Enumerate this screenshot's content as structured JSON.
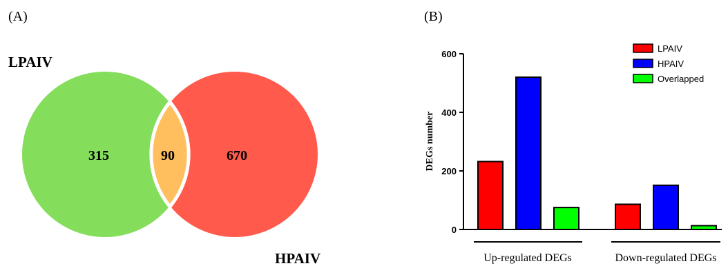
{
  "panel_a": {
    "label": "(A)",
    "set_left_label": "LPAIV",
    "set_right_label": "HPAIV",
    "left_only": "315",
    "overlap": "90",
    "right_only": "670",
    "colors": {
      "left": "#84de5c",
      "right": "#ff5a4c",
      "overlap": "#ffbf5e"
    }
  },
  "panel_b": {
    "label": "(B)"
  },
  "chart_data": [
    {
      "type": "venn",
      "sets": [
        "LPAIV",
        "HPAIV"
      ],
      "values": {
        "LPAIV_only": 315,
        "HPAIV_only": 670,
        "overlap": 90
      }
    },
    {
      "type": "bar",
      "ylabel": "DEGs number",
      "ylim": [
        0,
        600
      ],
      "yticks": [
        "0",
        "200",
        "400",
        "600"
      ],
      "groups": [
        "Up-regulated DEGs",
        "Down-regulated DEGs"
      ],
      "series": [
        {
          "name": "LPAIV",
          "color": "#ff0000",
          "values": [
            232,
            86
          ]
        },
        {
          "name": "HPAIV",
          "color": "#0000ff",
          "values": [
            520,
            151
          ]
        },
        {
          "name": "Overlapped",
          "color": "#00ff00",
          "values": [
            75,
            13
          ]
        }
      ],
      "legend": "top-right",
      "grid": false
    }
  ]
}
